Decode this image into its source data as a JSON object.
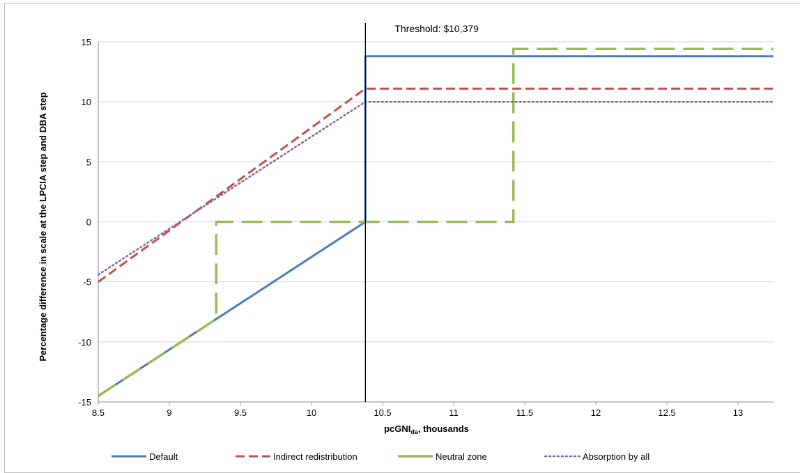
{
  "chart_data": {
    "type": "line",
    "title": "",
    "xlabel": "pcGNI",
    "xlabel_sub": "da",
    "xlabel_suffix": ", thousands",
    "ylabel": "Percentage difference in scale at the LPCIA step and DBA step",
    "xlim": [
      8.5,
      13.25
    ],
    "ylim": [
      -15,
      15
    ],
    "x_ticks": [
      "8.5",
      "9",
      "9.5",
      "10",
      "10.5",
      "11",
      "11.5",
      "12",
      "12.5",
      "13"
    ],
    "y_ticks": [
      "15",
      "10",
      "5",
      "0",
      "-5",
      "-10",
      "-15"
    ],
    "grid": "horizontal",
    "legend": "bottom",
    "annotations": [
      {
        "text": "Threshold: $10,379",
        "x": 10.379
      }
    ],
    "series": [
      {
        "name": "Default",
        "color": "#4a7ebb",
        "dash": "solid",
        "points": [
          [
            8.5,
            -14.5
          ],
          [
            10.379,
            0
          ],
          [
            10.379,
            13.8
          ],
          [
            13.25,
            13.8
          ]
        ]
      },
      {
        "name": "Indirect redistribution",
        "color": "#c0504d",
        "dash": "dashed",
        "points": [
          [
            8.5,
            -5
          ],
          [
            10.379,
            11.1
          ],
          [
            13.25,
            11.1
          ]
        ]
      },
      {
        "name": "Neutral zone",
        "color": "#9bbb59",
        "dash": "long-dashed",
        "points": [
          [
            8.5,
            -14.5
          ],
          [
            9.33,
            -8.1
          ],
          [
            9.33,
            0
          ],
          [
            11.42,
            0
          ],
          [
            11.42,
            14.4
          ],
          [
            13.25,
            14.4
          ]
        ]
      },
      {
        "name": "Absorption by all",
        "color": "#8064a2",
        "dash": "dotted",
        "points": [
          [
            8.5,
            -4.4
          ],
          [
            10.379,
            10
          ],
          [
            13.25,
            10
          ]
        ]
      }
    ]
  }
}
